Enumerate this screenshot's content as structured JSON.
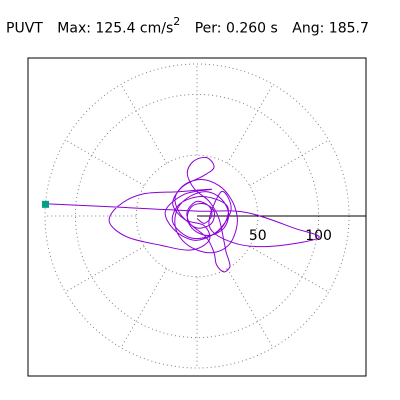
{
  "header": {
    "station": "PUVT",
    "max_label": "Max:",
    "max_value": "125.4 cm/s",
    "max_exp": "2",
    "per_label": "Per:",
    "per_value": "0.260 s",
    "ang_label": "Ang:",
    "ang_value": "185.7"
  },
  "chart_data": {
    "type": "polar-particle-motion",
    "title": "PUVT Max: 125.4 cm/s2 Per: 0.260 s Ang: 185.7",
    "max_amplitude": 125.4,
    "units": "cm/s2",
    "period_s": 0.26,
    "azimuth_deg": 185.7,
    "rings": [
      50,
      100
    ],
    "ring_labels": [
      "50",
      "100"
    ],
    "ring_max": 125,
    "ring_style": "dotted",
    "radial_spokes_deg": [
      0,
      30,
      60,
      90,
      120,
      150,
      180,
      210,
      240,
      270,
      300,
      330
    ],
    "axis": "positive-x",
    "trace_color": "#8b00d6",
    "marker_color": "#00a080",
    "trace_points": [
      [
        -125,
        10
      ],
      [
        -80,
        8
      ],
      [
        -40,
        6
      ],
      [
        0,
        4
      ],
      [
        40,
        3
      ],
      [
        80,
        -10
      ],
      [
        100,
        -18
      ],
      [
        60,
        -25
      ],
      [
        30,
        -22
      ],
      [
        10,
        -8
      ],
      [
        20,
        20
      ],
      [
        28,
        5
      ],
      [
        15,
        -14
      ],
      [
        -5,
        -18
      ],
      [
        -20,
        -5
      ],
      [
        -14,
        10
      ],
      [
        5,
        16
      ],
      [
        25,
        8
      ],
      [
        20,
        -10
      ],
      [
        0,
        -20
      ],
      [
        -18,
        -12
      ],
      [
        -26,
        4
      ],
      [
        -10,
        18
      ],
      [
        12,
        22
      ],
      [
        -15,
        20
      ],
      [
        -45,
        18
      ],
      [
        -65,
        8
      ],
      [
        -72,
        -5
      ],
      [
        -58,
        -17
      ],
      [
        -30,
        -24
      ],
      [
        -5,
        -28
      ],
      [
        10,
        -20
      ],
      [
        6,
        -8
      ],
      [
        -10,
        -3
      ],
      [
        -20,
        10
      ],
      [
        -12,
        24
      ],
      [
        5,
        33
      ],
      [
        14,
        40
      ],
      [
        8,
        48
      ],
      [
        -3,
        45
      ],
      [
        -8,
        35
      ],
      [
        -2,
        22
      ],
      [
        10,
        12
      ],
      [
        18,
        -2
      ],
      [
        22,
        -20
      ],
      [
        24,
        -30
      ],
      [
        26,
        -36
      ],
      [
        27,
        -42
      ],
      [
        22,
        -46
      ],
      [
        16,
        -40
      ],
      [
        14,
        -30
      ],
      [
        8,
        -18
      ],
      [
        -4,
        -8
      ],
      [
        -14,
        2
      ],
      [
        -18,
        15
      ],
      [
        -10,
        26
      ],
      [
        4,
        30
      ],
      [
        18,
        25
      ],
      [
        28,
        14
      ],
      [
        33,
        0
      ],
      [
        32,
        -12
      ],
      [
        26,
        -24
      ],
      [
        14,
        -30
      ],
      [
        0,
        -28
      ],
      [
        -12,
        -20
      ],
      [
        -18,
        -8
      ],
      [
        -16,
        6
      ],
      [
        -6,
        16
      ],
      [
        8,
        20
      ],
      [
        20,
        14
      ],
      [
        26,
        2
      ],
      [
        22,
        -10
      ],
      [
        10,
        -16
      ],
      [
        -2,
        -12
      ],
      [
        -8,
        -2
      ],
      [
        -4,
        8
      ],
      [
        6,
        10
      ],
      [
        14,
        4
      ],
      [
        12,
        -6
      ],
      [
        2,
        -10
      ],
      [
        -6,
        -6
      ],
      [
        -8,
        4
      ],
      [
        0,
        12
      ],
      [
        10,
        8
      ],
      [
        12,
        0
      ],
      [
        6,
        -6
      ],
      [
        0,
        -2
      ]
    ]
  }
}
